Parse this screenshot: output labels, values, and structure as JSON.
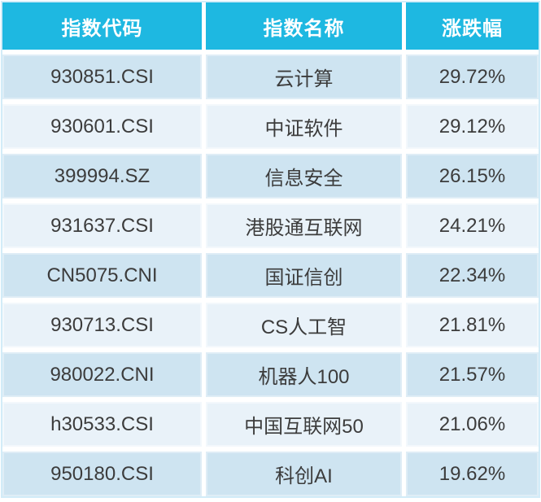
{
  "table": {
    "columns": [
      {
        "key": "code",
        "label": "指数代码"
      },
      {
        "key": "name",
        "label": "指数名称"
      },
      {
        "key": "change",
        "label": "涨跌幅"
      }
    ],
    "rows": [
      {
        "code": "930851.CSI",
        "name": "云计算",
        "change": "29.72%"
      },
      {
        "code": "930601.CSI",
        "name": "中证软件",
        "change": "29.12%"
      },
      {
        "code": "399994.SZ",
        "name": "信息安全",
        "change": "26.15%"
      },
      {
        "code": "931637.CSI",
        "name": "港股通互联网",
        "change": "24.21%"
      },
      {
        "code": "CN5075.CNI",
        "name": "国证信创",
        "change": "22.34%"
      },
      {
        "code": "930713.CSI",
        "name": "CS人工智",
        "change": "21.81%"
      },
      {
        "code": "980022.CNI",
        "name": "机器人100",
        "change": "21.57%"
      },
      {
        "code": "h30533.CSI",
        "name": "中国互联网50",
        "change": "21.06%"
      },
      {
        "code": "950180.CSI",
        "name": "科创AI",
        "change": "19.62%"
      }
    ]
  },
  "colors": {
    "header_bg": "#1eb8e1",
    "header_text": "#ffffff",
    "row_odd_bg": "#cee4f1",
    "row_even_bg": "#e9f2f9",
    "cell_text": "#3c3c3c",
    "panel_border": "#d2ecf8"
  },
  "chart_data": {
    "type": "table",
    "title": "",
    "columns": [
      "指数代码",
      "指数名称",
      "涨跌幅"
    ],
    "rows": [
      [
        "930851.CSI",
        "云计算",
        "29.72%"
      ],
      [
        "930601.CSI",
        "中证软件",
        "29.12%"
      ],
      [
        "399994.SZ",
        "信息安全",
        "26.15%"
      ],
      [
        "931637.CSI",
        "港股通互联网",
        "24.21%"
      ],
      [
        "CN5075.CNI",
        "国证信创",
        "22.34%"
      ],
      [
        "930713.CSI",
        "CS人工智",
        "21.81%"
      ],
      [
        "980022.CNI",
        "机器人100",
        "21.57%"
      ],
      [
        "h30533.CSI",
        "中国互联网50",
        "21.06%"
      ],
      [
        "950180.CSI",
        "科创AI",
        "19.62%"
      ]
    ],
    "series": [
      {
        "name": "涨跌幅",
        "values": [
          29.72,
          29.12,
          26.15,
          24.21,
          22.34,
          21.81,
          21.57,
          21.06,
          19.62
        ]
      }
    ]
  }
}
